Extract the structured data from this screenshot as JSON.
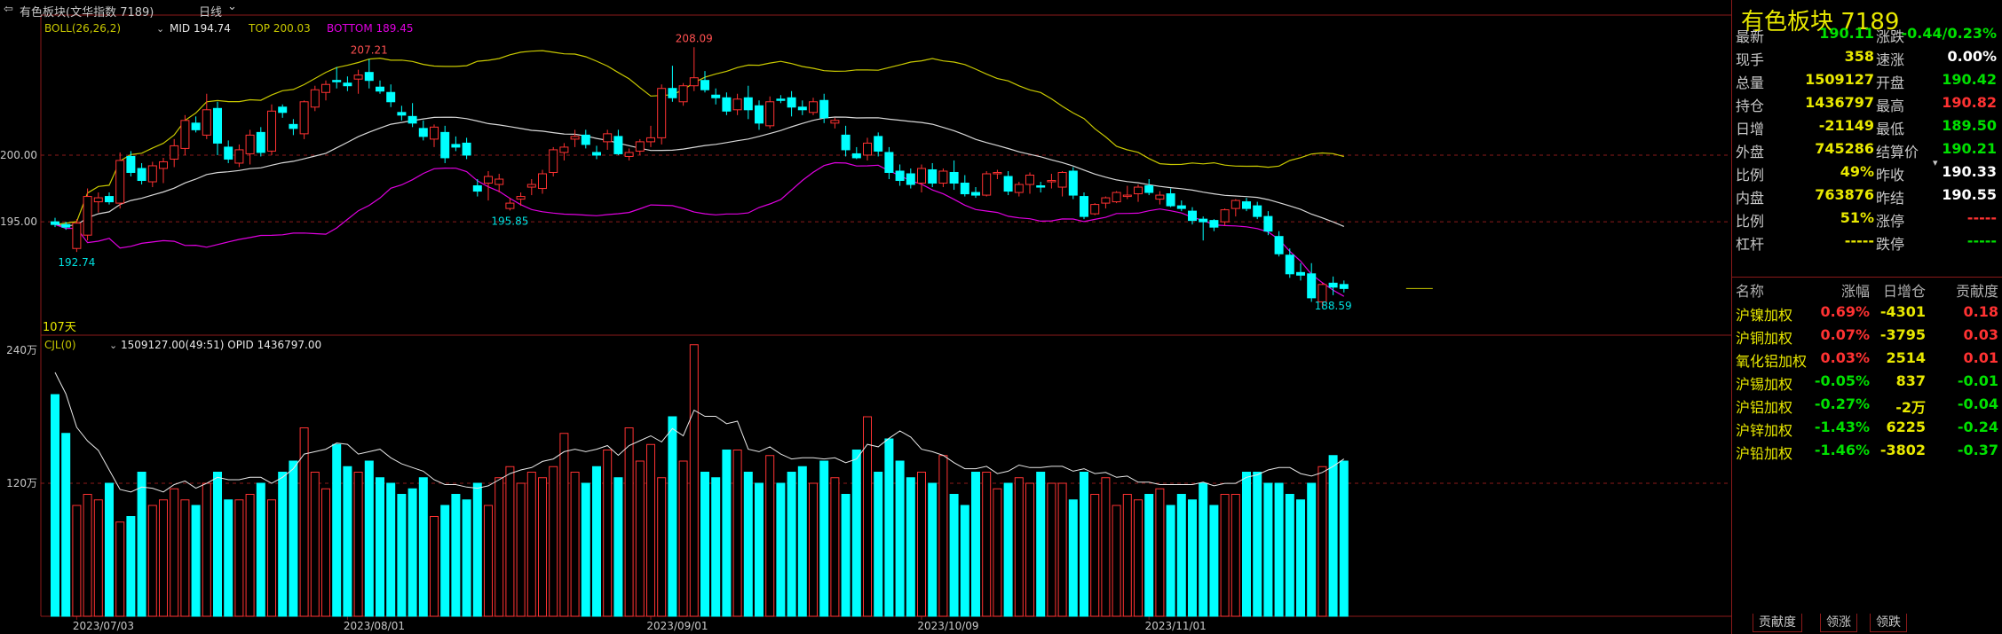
{
  "header": {
    "back_glyph": "⇦",
    "title": "有色板块(文华指数 7189)",
    "period": "日线",
    "dropdown_glyph": "⌄"
  },
  "main_indicator": {
    "label": "BOLL(26,26,2)",
    "mid": "MID 194.74",
    "top": "TOP 200.03",
    "bottom": "BOTTOM 189.45"
  },
  "volume_indicator": {
    "label": "CJL(0)",
    "values": "1509127.00(49:51)  OPID 1436797.00"
  },
  "annotations": {
    "days": "107天",
    "high1": "207.21",
    "high2": "208.09",
    "low1": "192.74",
    "low2": "195.85",
    "low3": "188.59"
  },
  "colors": {
    "up": "#ff3232",
    "down": "#00ffff",
    "boll_top": "#c8c800",
    "boll_mid": "#d8d8d8",
    "boll_bottom": "#e000e0",
    "text_yellow": "#e8e800",
    "green": "#00e000",
    "grid_red": "#8b1a1a"
  },
  "chart_data": {
    "type": "candlestick",
    "title": "有色板块(文华指数 7189)",
    "y_axis_price": {
      "ticks": [
        "195.00",
        "200.00"
      ],
      "range": [
        186.5,
        210.5
      ]
    },
    "y_axis_volume": {
      "ticks": [
        "120万",
        "240万"
      ],
      "range": [
        0,
        2400000
      ]
    },
    "x_tick_labels": [
      "2023/07/03",
      "2023/08/01",
      "2023/09/01",
      "2023/10/09",
      "2023/11/01"
    ],
    "x_tick_index": [
      2,
      27,
      55,
      80,
      101
    ],
    "candles": [
      [
        195.0,
        195.3,
        194.6,
        194.8
      ],
      [
        194.8,
        195.0,
        194.4,
        194.6
      ],
      [
        193.0,
        195.2,
        192.74,
        194.9
      ],
      [
        194.0,
        197.5,
        193.6,
        196.9
      ],
      [
        196.5,
        197.2,
        195.7,
        196.8
      ],
      [
        196.9,
        197.2,
        196.3,
        196.5
      ],
      [
        196.4,
        200.2,
        196.0,
        199.6
      ],
      [
        199.9,
        200.3,
        198.4,
        198.7
      ],
      [
        199.0,
        199.4,
        197.8,
        198.1
      ],
      [
        198.0,
        199.5,
        197.6,
        199.2
      ],
      [
        199.0,
        199.8,
        197.9,
        199.5
      ],
      [
        199.7,
        201.2,
        199.1,
        200.7
      ],
      [
        200.5,
        203.0,
        200.0,
        202.6
      ],
      [
        202.4,
        202.9,
        201.7,
        201.9
      ],
      [
        201.5,
        204.6,
        201.2,
        203.4
      ],
      [
        203.5,
        204.0,
        200.0,
        200.9
      ],
      [
        200.6,
        201.1,
        199.4,
        199.7
      ],
      [
        199.4,
        200.8,
        199.1,
        200.4
      ],
      [
        200.1,
        201.9,
        199.3,
        201.5
      ],
      [
        201.7,
        202.1,
        199.9,
        200.2
      ],
      [
        200.3,
        203.8,
        200.0,
        203.3
      ],
      [
        203.6,
        203.8,
        202.8,
        203.2
      ],
      [
        202.3,
        202.7,
        201.5,
        202.0
      ],
      [
        201.6,
        204.1,
        201.2,
        204.0
      ],
      [
        203.6,
        205.2,
        203.3,
        204.9
      ],
      [
        204.7,
        205.6,
        204.1,
        205.3
      ],
      [
        205.6,
        206.6,
        205.0,
        205.5
      ],
      [
        205.4,
        205.9,
        204.8,
        205.2
      ],
      [
        205.7,
        206.4,
        204.6,
        206.0
      ],
      [
        206.2,
        207.21,
        205.0,
        205.6
      ],
      [
        205.1,
        205.6,
        204.6,
        204.8
      ],
      [
        204.7,
        205.3,
        203.6,
        204.0
      ],
      [
        203.2,
        203.7,
        202.6,
        203.0
      ],
      [
        202.9,
        203.9,
        202.1,
        202.4
      ],
      [
        202.0,
        202.6,
        201.1,
        201.4
      ],
      [
        201.2,
        202.3,
        200.6,
        202.1
      ],
      [
        201.7,
        202.2,
        199.4,
        199.8
      ],
      [
        200.8,
        201.4,
        200.3,
        200.6
      ],
      [
        200.9,
        201.3,
        199.7,
        200.0
      ],
      [
        197.7,
        198.2,
        196.9,
        197.3
      ],
      [
        197.9,
        198.8,
        196.6,
        198.4
      ],
      [
        197.8,
        198.6,
        197.2,
        198.2
      ],
      [
        196.0,
        196.8,
        195.85,
        196.4
      ],
      [
        196.7,
        197.2,
        196.2,
        196.9
      ],
      [
        197.6,
        198.2,
        197.0,
        197.8
      ],
      [
        197.5,
        198.9,
        197.1,
        198.6
      ],
      [
        198.7,
        200.6,
        198.4,
        200.4
      ],
      [
        200.2,
        200.9,
        199.6,
        200.6
      ],
      [
        201.2,
        201.9,
        200.6,
        201.4
      ],
      [
        201.5,
        201.9,
        200.5,
        200.8
      ],
      [
        200.2,
        200.7,
        199.7,
        200.0
      ],
      [
        201.0,
        201.9,
        200.4,
        201.6
      ],
      [
        201.4,
        201.9,
        200.0,
        200.1
      ],
      [
        199.9,
        200.5,
        199.6,
        200.2
      ],
      [
        200.3,
        201.2,
        200.0,
        201.0
      ],
      [
        201.0,
        202.2,
        200.6,
        201.3
      ],
      [
        201.3,
        205.3,
        200.8,
        205.0
      ],
      [
        205.0,
        206.7,
        204.0,
        204.3
      ],
      [
        204.0,
        205.4,
        203.7,
        205.2
      ],
      [
        205.2,
        208.09,
        204.8,
        205.8
      ],
      [
        205.6,
        206.3,
        204.7,
        204.9
      ],
      [
        204.5,
        205.0,
        203.8,
        204.3
      ],
      [
        204.3,
        204.7,
        203.0,
        203.3
      ],
      [
        203.4,
        204.6,
        203.0,
        204.2
      ],
      [
        204.3,
        205.2,
        202.7,
        203.4
      ],
      [
        203.7,
        204.1,
        201.9,
        202.4
      ],
      [
        202.2,
        204.4,
        202.0,
        204.0
      ],
      [
        204.2,
        204.5,
        203.9,
        204.1
      ],
      [
        204.3,
        204.8,
        202.9,
        203.6
      ],
      [
        203.6,
        204.1,
        203.0,
        203.4
      ],
      [
        203.2,
        204.3,
        203.0,
        204.0
      ],
      [
        204.1,
        204.6,
        202.4,
        202.8
      ],
      [
        202.4,
        202.8,
        202.0,
        202.6
      ],
      [
        201.5,
        202.2,
        199.9,
        200.4
      ],
      [
        200.1,
        200.6,
        199.7,
        199.8
      ],
      [
        200.0,
        201.3,
        199.6,
        200.9
      ],
      [
        201.4,
        201.7,
        199.9,
        200.3
      ],
      [
        200.2,
        200.6,
        198.2,
        198.7
      ],
      [
        198.8,
        199.3,
        197.7,
        198.1
      ],
      [
        198.6,
        199.0,
        197.5,
        197.8
      ],
      [
        197.9,
        199.3,
        197.2,
        199.0
      ],
      [
        198.9,
        199.4,
        197.6,
        197.9
      ],
      [
        197.9,
        199.0,
        197.6,
        198.8
      ],
      [
        198.7,
        199.6,
        197.4,
        197.9
      ],
      [
        197.9,
        198.5,
        196.9,
        197.1
      ],
      [
        197.2,
        197.6,
        196.8,
        197.0
      ],
      [
        197.0,
        198.8,
        196.9,
        198.6
      ],
      [
        198.6,
        198.9,
        198.2,
        198.7
      ],
      [
        198.4,
        198.8,
        197.0,
        197.3
      ],
      [
        197.2,
        198.0,
        196.9,
        197.8
      ],
      [
        197.8,
        198.7,
        197.1,
        198.5
      ],
      [
        197.7,
        198.0,
        197.2,
        197.6
      ],
      [
        198.0,
        198.6,
        197.5,
        198.1
      ],
      [
        197.6,
        198.8,
        196.9,
        198.7
      ],
      [
        198.8,
        199.1,
        196.7,
        197.0
      ],
      [
        196.9,
        197.2,
        195.2,
        195.4
      ],
      [
        195.6,
        196.4,
        195.5,
        196.3
      ],
      [
        196.4,
        196.9,
        196.0,
        196.8
      ],
      [
        196.5,
        197.3,
        196.4,
        197.2
      ],
      [
        196.9,
        197.7,
        196.7,
        197.0
      ],
      [
        197.1,
        197.8,
        196.5,
        197.6
      ],
      [
        197.7,
        198.2,
        197.0,
        197.2
      ],
      [
        196.7,
        197.3,
        196.3,
        197.0
      ],
      [
        197.1,
        197.5,
        196.1,
        196.2
      ],
      [
        196.2,
        196.6,
        195.8,
        196.0
      ],
      [
        195.8,
        196.1,
        194.8,
        195.1
      ],
      [
        195.2,
        195.4,
        193.6,
        195.0
      ],
      [
        195.1,
        195.2,
        194.3,
        194.6
      ],
      [
        195.0,
        196.0,
        194.7,
        195.9
      ],
      [
        196.0,
        196.7,
        195.4,
        196.6
      ],
      [
        196.5,
        196.8,
        195.8,
        196.0
      ],
      [
        196.2,
        196.5,
        195.2,
        195.4
      ],
      [
        195.4,
        195.8,
        194.0,
        194.3
      ],
      [
        193.9,
        194.3,
        192.4,
        192.6
      ],
      [
        192.5,
        193.0,
        190.8,
        191.1
      ],
      [
        191.2,
        191.9,
        190.6,
        191.0
      ],
      [
        191.1,
        191.9,
        189.0,
        189.3
      ],
      [
        189.0,
        190.4,
        188.59,
        190.3
      ],
      [
        190.4,
        190.9,
        189.5,
        190.1
      ],
      [
        190.3,
        190.6,
        189.7,
        190.0
      ]
    ],
    "volume": [
      2000000,
      1650000,
      1000000,
      1100000,
      1050000,
      1200000,
      850000,
      900000,
      1300000,
      1000000,
      1050000,
      1150000,
      1050000,
      1000000,
      1200000,
      1300000,
      1050000,
      1050000,
      1100000,
      1200000,
      1050000,
      1300000,
      1400000,
      1700000,
      1300000,
      1150000,
      1550000,
      1350000,
      1300000,
      1400000,
      1250000,
      1200000,
      1100000,
      1150000,
      1250000,
      900000,
      1000000,
      1100000,
      1050000,
      1200000,
      1000000,
      1250000,
      1350000,
      1200000,
      1300000,
      1250000,
      1350000,
      1650000,
      1300000,
      1200000,
      1350000,
      1500000,
      1250000,
      1700000,
      1400000,
      1550000,
      1250000,
      1800000,
      1400000,
      2450000,
      1300000,
      1250000,
      1500000,
      1500000,
      1300000,
      1200000,
      1450000,
      1200000,
      1300000,
      1350000,
      1200000,
      1400000,
      1250000,
      1100000,
      1500000,
      1800000,
      1300000,
      1600000,
      1400000,
      1250000,
      1300000,
      1200000,
      1450000,
      1100000,
      1000000,
      1300000,
      1300000,
      1150000,
      1200000,
      1250000,
      1200000,
      1300000,
      1200000,
      1200000,
      1050000,
      1300000,
      1100000,
      1250000,
      1000000,
      1100000,
      1050000,
      1100000,
      1150000,
      1000000,
      1100000,
      1050000,
      1200000,
      1000000,
      1100000,
      1100000,
      1300000,
      1300000,
      1200000,
      1200000,
      1100000,
      1050000,
      1200000,
      1350000,
      1450000,
      1400000
    ]
  },
  "quote": {
    "title": "有色板块  7189",
    "left": [
      {
        "k": "最新",
        "v": "190.11",
        "c": "#00e000"
      },
      {
        "k": "现手",
        "v": "358",
        "c": "#e8e800"
      },
      {
        "k": "总量",
        "v": "1509127",
        "c": "#e8e800"
      },
      {
        "k": "持仓",
        "v": "1436797",
        "c": "#e8e800"
      },
      {
        "k": "日增",
        "v": "-21149",
        "c": "#e8e800"
      },
      {
        "k": "外盘",
        "v": "745286",
        "c": "#e8e800"
      },
      {
        "k": "比例",
        "v": "49%",
        "c": "#e8e800"
      },
      {
        "k": "内盘",
        "v": "763876",
        "c": "#e8e800"
      },
      {
        "k": "比例",
        "v": "51%",
        "c": "#e8e800"
      },
      {
        "k": "杠杆",
        "v": "-----",
        "c": "#e8e800"
      }
    ],
    "right": [
      {
        "k": "涨跌",
        "v": "-0.44/0.23%",
        "c": "#00e000"
      },
      {
        "k": "速涨",
        "v": "0.00%",
        "c": "#ffffff"
      },
      {
        "k": "开盘",
        "v": "190.42",
        "c": "#00e000"
      },
      {
        "k": "最高",
        "v": "190.82",
        "c": "#ff3232"
      },
      {
        "k": "最低",
        "v": "189.50",
        "c": "#00e000"
      },
      {
        "k": "结算价",
        "v": "190.21",
        "c": "#00e000"
      },
      {
        "k": "昨收",
        "v": "190.33",
        "c": "#ffffff"
      },
      {
        "k": "昨结",
        "v": "190.55",
        "c": "#ffffff"
      },
      {
        "k": "涨停",
        "v": "-----",
        "c": "#ff3232"
      },
      {
        "k": "跌停",
        "v": "-----",
        "c": "#00e000"
      }
    ]
  },
  "table": {
    "headers": [
      "名称",
      "涨幅",
      "日增仓",
      "贡献度"
    ],
    "rows": [
      {
        "name": "沪镍加权",
        "chg": "0.69%",
        "chg_c": "#ff3232",
        "inc": "-4301",
        "contrib": "0.18",
        "ct_c": "#ff3232"
      },
      {
        "name": "沪铜加权",
        "chg": "0.07%",
        "chg_c": "#ff3232",
        "inc": "-3795",
        "contrib": "0.03",
        "ct_c": "#ff3232"
      },
      {
        "name": "氧化铝加权",
        "chg": "0.03%",
        "chg_c": "#ff3232",
        "inc": "2514",
        "contrib": "0.01",
        "ct_c": "#ff3232"
      },
      {
        "name": "沪锡加权",
        "chg": "-0.05%",
        "chg_c": "#00e000",
        "inc": "837",
        "contrib": "-0.01",
        "ct_c": "#00e000"
      },
      {
        "name": "沪铝加权",
        "chg": "-0.27%",
        "chg_c": "#00e000",
        "inc": "-2万",
        "contrib": "-0.04",
        "ct_c": "#00e000"
      },
      {
        "name": "沪锌加权",
        "chg": "-1.43%",
        "chg_c": "#00e000",
        "inc": "6225",
        "contrib": "-0.24",
        "ct_c": "#00e000"
      },
      {
        "name": "沪铅加权",
        "chg": "-1.46%",
        "chg_c": "#00e000",
        "inc": "-3802",
        "contrib": "-0.37",
        "ct_c": "#00e000"
      }
    ]
  },
  "tabs": [
    "贡献度",
    "领涨",
    "领跌"
  ]
}
